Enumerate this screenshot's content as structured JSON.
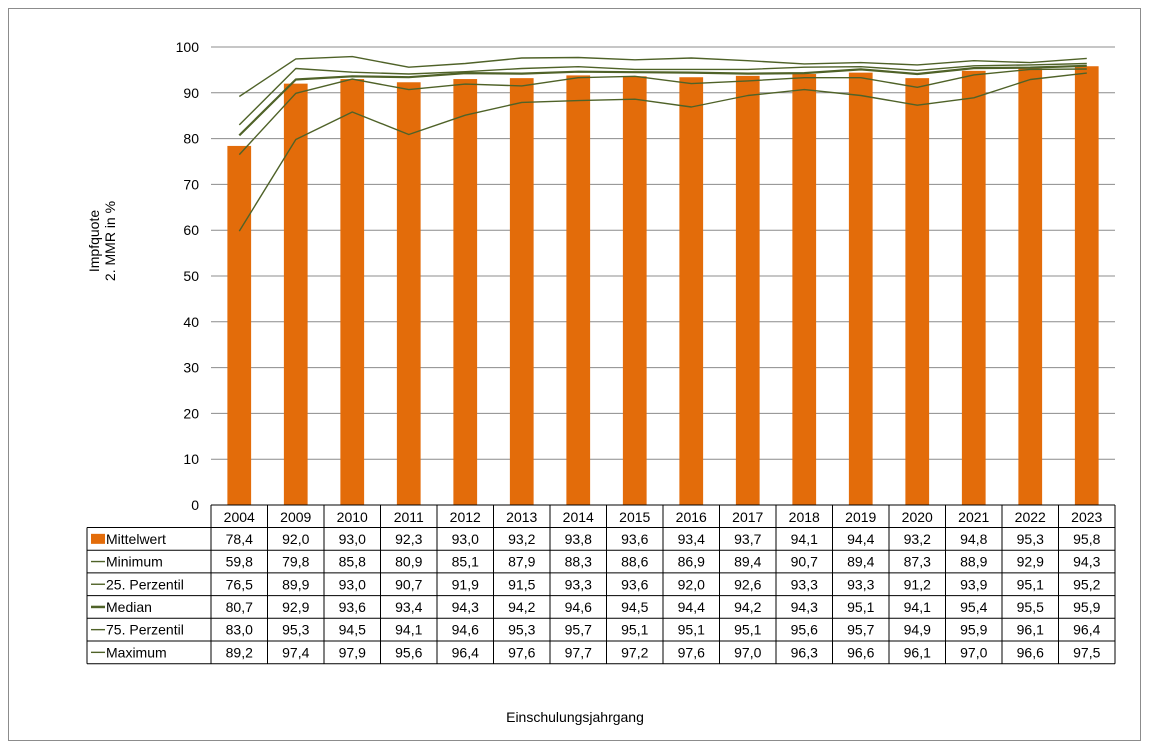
{
  "chart_data": {
    "type": "bar",
    "categories": [
      "2004",
      "2009",
      "2010",
      "2011",
      "2012",
      "2013",
      "2014",
      "2015",
      "2016",
      "2017",
      "2018",
      "2019",
      "2020",
      "2021",
      "2022",
      "2023"
    ],
    "ylabel_line1": "Impfquote",
    "ylabel_line2": "2. MMR in %",
    "xlabel": "Einschulungsjahrgang",
    "ylim": [
      0,
      100
    ],
    "yticks": [
      "0",
      "10",
      "20",
      "30",
      "40",
      "50",
      "60",
      "70",
      "80",
      "90",
      "100"
    ],
    "grid": true,
    "bar_series": {
      "name": "Mittelwert",
      "color": "#E36C0A",
      "values": [
        78.4,
        92.0,
        93.0,
        92.3,
        93.0,
        93.2,
        93.8,
        93.6,
        93.4,
        93.7,
        94.1,
        94.4,
        93.2,
        94.8,
        95.3,
        95.8
      ],
      "labels": [
        "78,4",
        "92,0",
        "93,0",
        "92,3",
        "93,0",
        "93,2",
        "93,8",
        "93,6",
        "93,4",
        "93,7",
        "94,1",
        "94,4",
        "93,2",
        "94,8",
        "95,3",
        "95,8"
      ]
    },
    "line_series": [
      {
        "name": "Minimum",
        "color": "#4F6228",
        "values": [
          59.8,
          79.8,
          85.8,
          80.9,
          85.1,
          87.9,
          88.3,
          88.6,
          86.9,
          89.4,
          90.7,
          89.4,
          87.3,
          88.9,
          92.9,
          94.3
        ],
        "labels": [
          "59,8",
          "79,8",
          "85,8",
          "80,9",
          "85,1",
          "87,9",
          "88,3",
          "88,6",
          "86,9",
          "89,4",
          "90,7",
          "89,4",
          "87,3",
          "88,9",
          "92,9",
          "94,3"
        ]
      },
      {
        "name": "25. Perzentil",
        "color": "#4F6228",
        "values": [
          76.5,
          89.9,
          93.0,
          90.7,
          91.9,
          91.5,
          93.3,
          93.6,
          92.0,
          92.6,
          93.3,
          93.3,
          91.2,
          93.9,
          95.1,
          95.2
        ],
        "labels": [
          "76,5",
          "89,9",
          "93,0",
          "90,7",
          "91,9",
          "91,5",
          "93,3",
          "93,6",
          "92,0",
          "92,6",
          "93,3",
          "93,3",
          "91,2",
          "93,9",
          "95,1",
          "95,2"
        ]
      },
      {
        "name": "Median",
        "color": "#4F6228",
        "bold": true,
        "values": [
          80.7,
          92.9,
          93.6,
          93.4,
          94.3,
          94.2,
          94.6,
          94.5,
          94.4,
          94.2,
          94.3,
          95.1,
          94.1,
          95.4,
          95.5,
          95.9
        ],
        "labels": [
          "80,7",
          "92,9",
          "93,6",
          "93,4",
          "94,3",
          "94,2",
          "94,6",
          "94,5",
          "94,4",
          "94,2",
          "94,3",
          "95,1",
          "94,1",
          "95,4",
          "95,5",
          "95,9"
        ]
      },
      {
        "name": "75. Perzentil",
        "color": "#4F6228",
        "values": [
          83.0,
          95.3,
          94.5,
          94.1,
          94.6,
          95.3,
          95.7,
          95.1,
          95.1,
          95.1,
          95.6,
          95.7,
          94.9,
          95.9,
          96.1,
          96.4
        ],
        "labels": [
          "83,0",
          "95,3",
          "94,5",
          "94,1",
          "94,6",
          "95,3",
          "95,7",
          "95,1",
          "95,1",
          "95,1",
          "95,6",
          "95,7",
          "94,9",
          "95,9",
          "96,1",
          "96,4"
        ]
      },
      {
        "name": "Maximum",
        "color": "#4F6228",
        "values": [
          89.2,
          97.4,
          97.9,
          95.6,
          96.4,
          97.6,
          97.7,
          97.2,
          97.6,
          97.0,
          96.3,
          96.6,
          96.1,
          97.0,
          96.6,
          97.5
        ],
        "labels": [
          "89,2",
          "97,4",
          "97,9",
          "95,6",
          "96,4",
          "97,6",
          "97,7",
          "97,2",
          "97,6",
          "97,0",
          "96,3",
          "96,6",
          "96,1",
          "97,0",
          "96,6",
          "97,5"
        ]
      }
    ]
  }
}
